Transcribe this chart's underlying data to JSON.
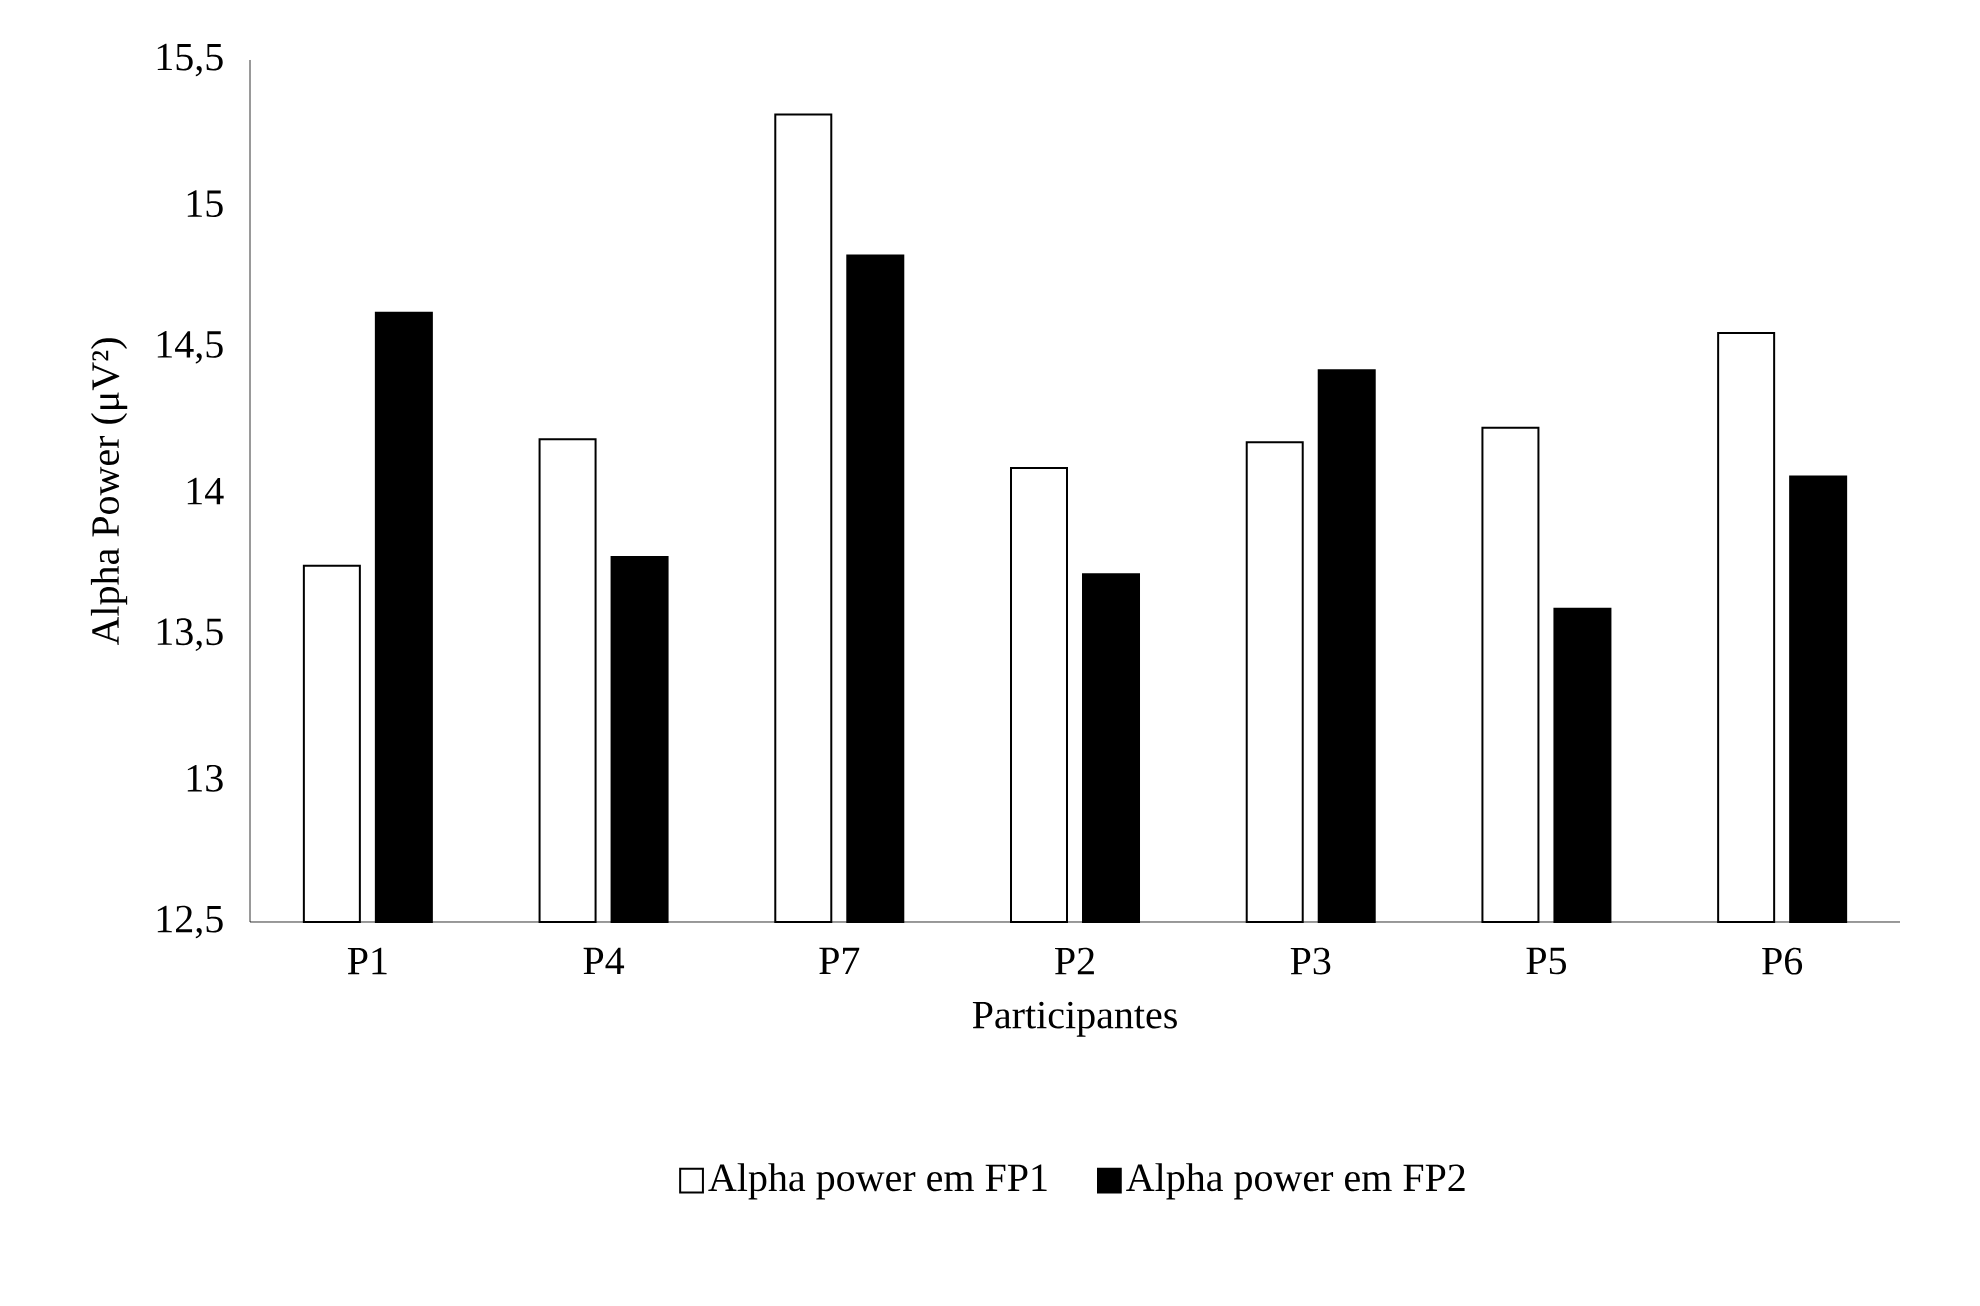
{
  "chart_data": {
    "type": "bar",
    "xlabel": "Participantes",
    "ylabel": "Alpha Power (μV²)",
    "categories": [
      "P1",
      "P4",
      "P7",
      "P2",
      "P3",
      "P5",
      "P6"
    ],
    "series": [
      {
        "name": "Alpha power em FP1",
        "color": "#ffffff",
        "values": [
          13.74,
          14.18,
          15.31,
          14.08,
          14.17,
          14.22,
          14.55
        ]
      },
      {
        "name": "Alpha power em FP2",
        "color": "#000000",
        "values": [
          14.62,
          13.77,
          14.82,
          13.71,
          14.42,
          13.59,
          14.05
        ]
      }
    ],
    "ylim": [
      12.5,
      15.5
    ],
    "yticks": [
      {
        "value": 12.5,
        "label": "12,5"
      },
      13,
      {
        "value": 13.5,
        "label": "13,5"
      },
      14,
      {
        "value": 14.5,
        "label": "14,5"
      },
      15,
      {
        "value": 15.5,
        "label": "15,5"
      }
    ],
    "grid": false,
    "legend": "bottom"
  }
}
